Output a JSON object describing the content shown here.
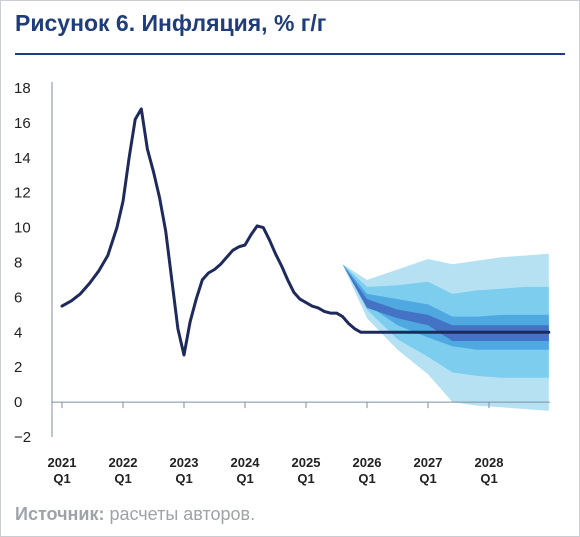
{
  "figure": {
    "title": "Рисунок 6. Инфляция, % г/г",
    "source_label": "Источник:",
    "source_text": " расчеты авторов."
  },
  "colors": {
    "title": "#1f3d7a",
    "line": "#1f2a5c",
    "band_outer": "#b5e1f3",
    "band_mid": "#7ccdee",
    "band_inner": "#4fa9e0",
    "band_core": "#4472c4",
    "axis": "#7d8fa3",
    "source": "#9ea3a8"
  },
  "chart_data": {
    "type": "line",
    "title": "Рисунок 6. Инфляция, % г/г",
    "xlabel": "",
    "ylabel": "",
    "ylim": [
      -2,
      18
    ],
    "yticks": [
      18,
      16,
      14,
      12,
      10,
      8,
      6,
      4,
      2,
      0,
      -2
    ],
    "ytick_labels": [
      "18",
      "16",
      "14",
      "12",
      "10",
      "8",
      "6",
      "4",
      "2",
      "0",
      "−2"
    ],
    "xlim": [
      2021.0,
      2029.0
    ],
    "xticks": [
      {
        "x": 2021.0,
        "label_year": "2021",
        "label_q": "Q1"
      },
      {
        "x": 2022.0,
        "label_year": "2022",
        "label_q": "Q1"
      },
      {
        "x": 2023.0,
        "label_year": "2023",
        "label_q": "Q1"
      },
      {
        "x": 2024.0,
        "label_year": "2024",
        "label_q": "Q1"
      },
      {
        "x": 2025.0,
        "label_year": "2025",
        "label_q": "Q1"
      },
      {
        "x": 2026.0,
        "label_year": "2026",
        "label_q": "Q1"
      },
      {
        "x": 2027.0,
        "label_year": "2027",
        "label_q": "Q1"
      },
      {
        "x": 2028.0,
        "label_year": "2028",
        "label_q": "Q1"
      }
    ],
    "grid": false,
    "series": [
      {
        "kind": "line",
        "x": [
          2021.0,
          2021.15,
          2021.3,
          2021.45,
          2021.6,
          2021.75,
          2021.9,
          2022.0,
          2022.1,
          2022.2,
          2022.3,
          2022.4,
          2022.5,
          2022.6,
          2022.7,
          2022.8,
          2022.9,
          2023.0,
          2023.1,
          2023.2,
          2023.3,
          2023.4,
          2023.5,
          2023.6,
          2023.7,
          2023.8,
          2023.9,
          2024.0,
          2024.1,
          2024.2,
          2024.3,
          2024.4,
          2024.5,
          2024.6,
          2024.7,
          2024.8,
          2024.9,
          2025.0,
          2025.1,
          2025.2,
          2025.3,
          2025.4,
          2025.5,
          2025.6,
          2025.7,
          2025.8,
          2025.9,
          2026.0,
          2026.15,
          2026.3,
          2026.45,
          2026.6,
          2026.75,
          2026.9,
          2027.0,
          2027.1,
          2027.2,
          2027.3,
          2027.45,
          2027.6,
          2027.8,
          2028.0,
          2028.25,
          2028.5,
          2028.75,
          2028.98
        ],
        "y": [
          5.5,
          5.8,
          6.2,
          6.8,
          7.5,
          8.4,
          10.0,
          11.5,
          14.0,
          16.2,
          16.8,
          14.5,
          13.2,
          11.7,
          9.8,
          7.0,
          4.2,
          2.7,
          4.6,
          5.9,
          7.0,
          7.4,
          7.6,
          7.9,
          8.3,
          8.7,
          8.9,
          9.0,
          9.6,
          10.1,
          10.0,
          9.3,
          8.5,
          7.8,
          7.0,
          6.3,
          5.9,
          5.7,
          5.5,
          5.4,
          5.2,
          5.1,
          5.1,
          4.9,
          4.5,
          4.2,
          4.0,
          4.0,
          4.0,
          4.0,
          4.0,
          4.0,
          4.0,
          4.0,
          4.0,
          4.0,
          4.0,
          4.0,
          4.0,
          4.0,
          4.0,
          4.0,
          4.0,
          4.0,
          4.0,
          4.0
        ]
      }
    ],
    "bands": [
      {
        "name": "outer",
        "x": [
          2025.6,
          2026.0,
          2026.5,
          2027.0,
          2027.4,
          2027.8,
          2028.2,
          2028.6,
          2028.98
        ],
        "upper": [
          7.9,
          7.0,
          7.6,
          8.2,
          7.9,
          8.1,
          8.3,
          8.4,
          8.5
        ],
        "lower": [
          7.9,
          4.8,
          3.0,
          1.6,
          0.0,
          -0.2,
          -0.3,
          -0.4,
          -0.5
        ]
      },
      {
        "name": "mid",
        "x": [
          2025.6,
          2026.0,
          2026.5,
          2027.0,
          2027.4,
          2027.8,
          2028.2,
          2028.6,
          2028.98
        ],
        "upper": [
          7.9,
          6.6,
          6.7,
          6.9,
          6.2,
          6.4,
          6.5,
          6.6,
          6.6
        ],
        "lower": [
          7.9,
          5.3,
          3.6,
          2.6,
          1.7,
          1.5,
          1.4,
          1.4,
          1.4
        ]
      },
      {
        "name": "inner",
        "x": [
          2025.6,
          2026.0,
          2026.5,
          2027.0,
          2027.4,
          2027.8,
          2028.2,
          2028.6,
          2028.98
        ],
        "upper": [
          7.9,
          6.2,
          5.9,
          5.6,
          4.9,
          4.9,
          5.0,
          5.0,
          5.0
        ],
        "lower": [
          7.9,
          5.6,
          4.4,
          3.7,
          3.2,
          3.0,
          3.0,
          3.0,
          3.0
        ]
      },
      {
        "name": "core",
        "x": [
          2025.6,
          2026.0,
          2026.5,
          2027.0,
          2027.4,
          2027.8,
          2028.2,
          2028.6,
          2028.98
        ],
        "upper": [
          7.9,
          5.9,
          5.3,
          5.0,
          4.4,
          4.4,
          4.4,
          4.4,
          4.4
        ],
        "lower": [
          7.9,
          5.4,
          4.8,
          4.4,
          3.5,
          3.5,
          3.5,
          3.5,
          3.5
        ]
      }
    ]
  }
}
